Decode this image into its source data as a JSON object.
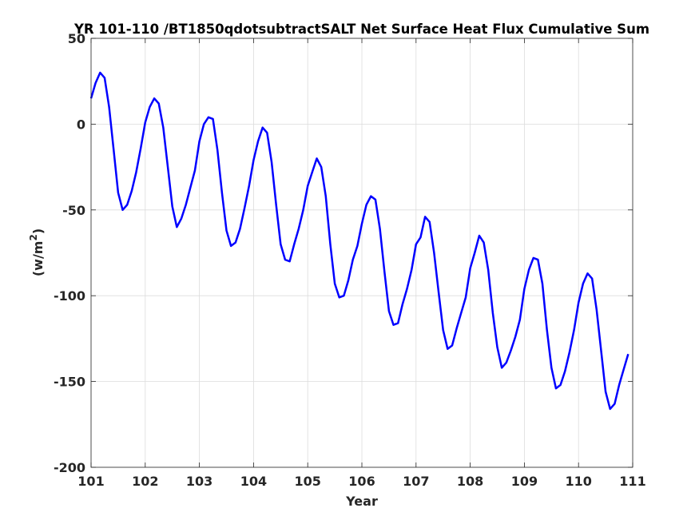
{
  "chart_data": {
    "type": "line",
    "title": "YR 101-110 /BT1850qdotsubtractSALT Net Surface Heat Flux  Cumulative Sum",
    "xlabel": "Year",
    "ylabel_base": "(w/m",
    "ylabel_sup": "2",
    "ylabel_close": ")",
    "xlim": [
      101,
      111
    ],
    "ylim": [
      -200,
      50
    ],
    "xticks": [
      101,
      102,
      103,
      104,
      105,
      106,
      107,
      108,
      109,
      110,
      111
    ],
    "yticks": [
      -200,
      -150,
      -100,
      -50,
      0,
      50
    ],
    "grid": true,
    "line_color": "#0000ff",
    "series": [
      {
        "x": [
          101.0,
          101.083,
          101.167,
          101.25,
          101.333,
          101.417,
          101.5,
          101.583,
          101.667,
          101.75,
          101.833,
          101.917,
          102.0,
          102.083,
          102.167,
          102.25,
          102.333,
          102.417,
          102.5,
          102.583,
          102.667,
          102.75,
          102.833,
          102.917,
          103.0,
          103.083,
          103.167,
          103.25,
          103.333,
          103.417,
          103.5,
          103.583,
          103.667,
          103.75,
          103.833,
          103.917,
          104.0,
          104.083,
          104.167,
          104.25,
          104.333,
          104.417,
          104.5,
          104.583,
          104.667,
          104.75,
          104.833,
          104.917,
          105.0,
          105.083,
          105.167,
          105.25,
          105.333,
          105.417,
          105.5,
          105.583,
          105.667,
          105.75,
          105.833,
          105.917,
          106.0,
          106.083,
          106.167,
          106.25,
          106.333,
          106.417,
          106.5,
          106.583,
          106.667,
          106.75,
          106.833,
          106.917,
          107.0,
          107.083,
          107.167,
          107.25,
          107.333,
          107.417,
          107.5,
          107.583,
          107.667,
          107.75,
          107.833,
          107.917,
          108.0,
          108.083,
          108.167,
          108.25,
          108.333,
          108.417,
          108.5,
          108.583,
          108.667,
          108.75,
          108.833,
          108.917,
          109.0,
          109.083,
          109.167,
          109.25,
          109.333,
          109.417,
          109.5,
          109.583,
          109.667,
          109.75,
          109.833,
          109.917,
          110.0,
          110.083,
          110.167,
          110.25,
          110.333,
          110.417,
          110.5,
          110.583,
          110.667,
          110.75,
          110.833,
          110.917
        ],
        "y": [
          15,
          24,
          30,
          27,
          10,
          -15,
          -40,
          -50,
          -47,
          -39,
          -28,
          -14,
          1,
          10,
          15,
          12,
          -2,
          -25,
          -48,
          -60,
          -55,
          -47,
          -37,
          -27,
          -10,
          0,
          4,
          3,
          -15,
          -40,
          -62,
          -71,
          -69,
          -61,
          -49,
          -36,
          -21,
          -10,
          -2,
          -5,
          -22,
          -47,
          -70,
          -79,
          -80,
          -70,
          -61,
          -50,
          -36,
          -28,
          -20,
          -25,
          -42,
          -70,
          -93,
          -101,
          -100,
          -91,
          -79,
          -71,
          -58,
          -47,
          -42,
          -44,
          -61,
          -86,
          -109,
          -117,
          -116,
          -105,
          -96,
          -85,
          -70,
          -66,
          -54,
          -57,
          -75,
          -98,
          -120,
          -131,
          -129,
          -119,
          -110,
          -101,
          -84,
          -75,
          -65,
          -69,
          -85,
          -110,
          -130,
          -142,
          -139,
          -132,
          -124,
          -114,
          -96,
          -85,
          -78,
          -79,
          -93,
          -120,
          -142,
          -154,
          -152,
          -144,
          -133,
          -120,
          -104,
          -93,
          -87,
          -90,
          -108,
          -132,
          -156,
          -166,
          -163,
          -152,
          -143,
          -134
        ]
      }
    ]
  }
}
